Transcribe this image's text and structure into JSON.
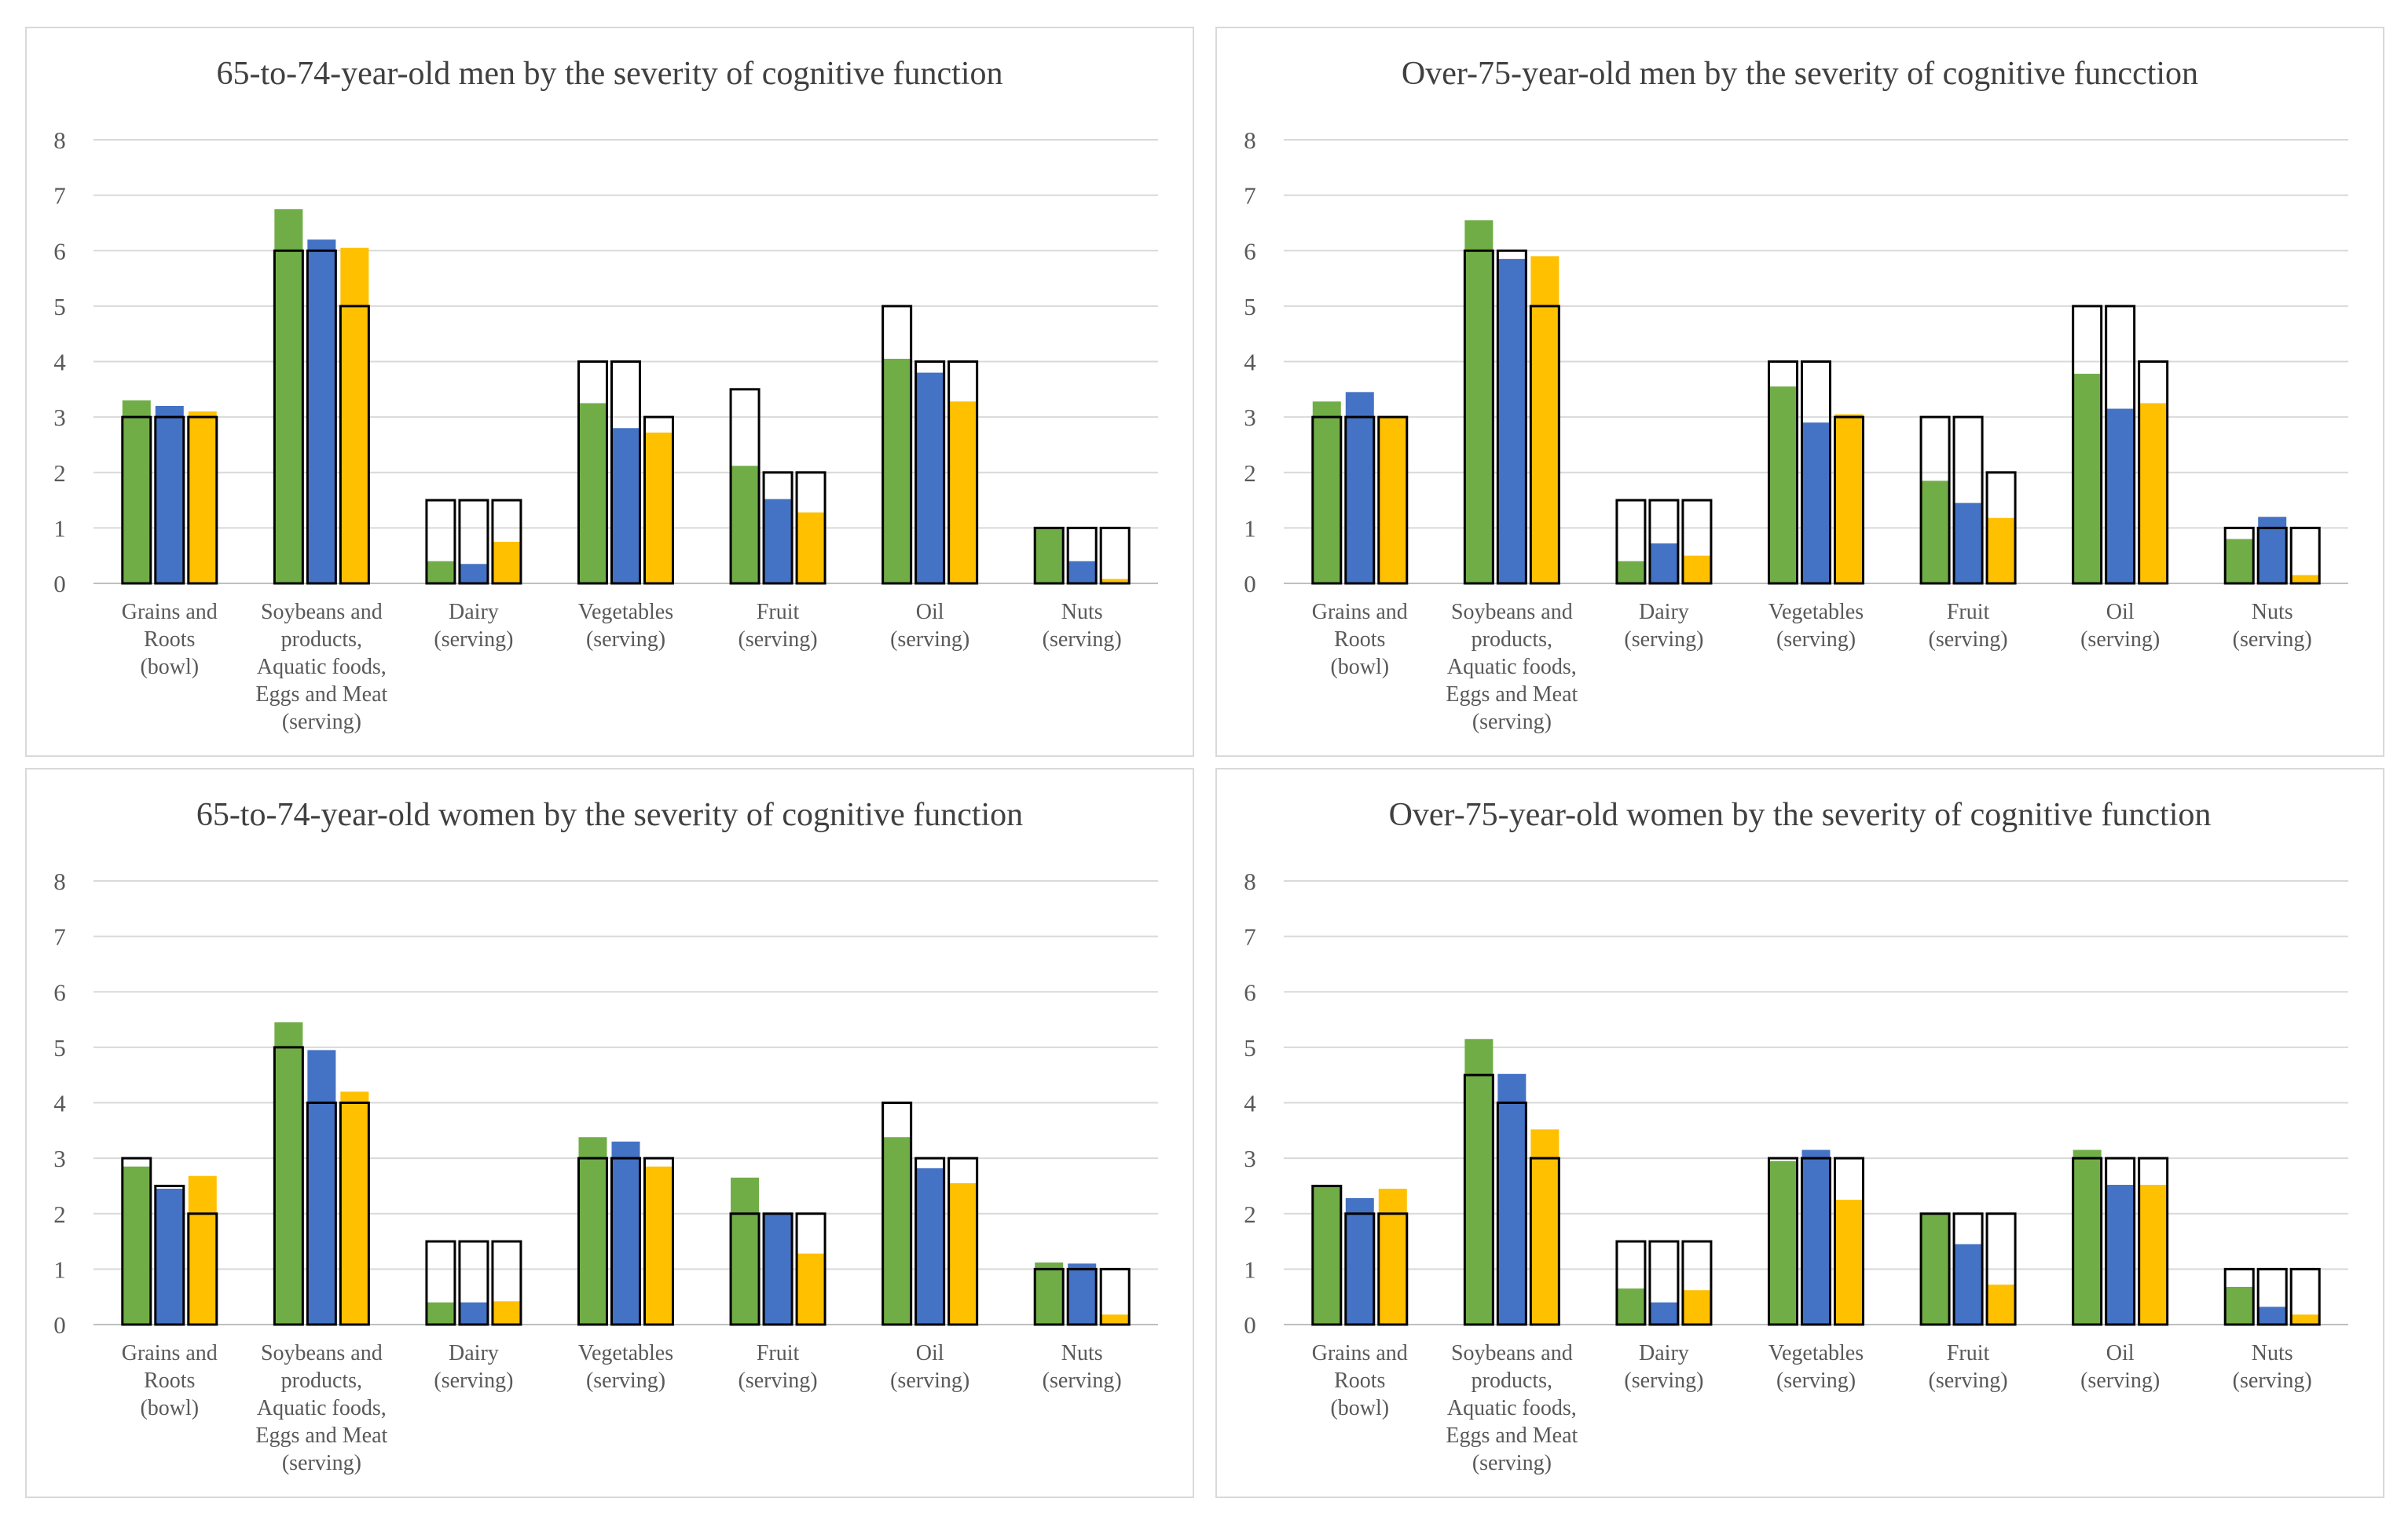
{
  "chart_data": [
    {
      "type": "bar",
      "title": "65-to-74-year-old men by the severity of cognitive function",
      "ylim": [
        0,
        8
      ],
      "yticks": [
        "0",
        "1",
        "2",
        "3",
        "4",
        "5",
        "6",
        "7",
        "8"
      ],
      "categories": [
        [
          "Grains and",
          "Roots",
          "(bowl)"
        ],
        [
          "Soybeans and",
          "products,",
          "Aquatic foods,",
          "Eggs and Meat",
          "(serving)"
        ],
        [
          "Dairy",
          "(serving)"
        ],
        [
          "Vegetables",
          "(serving)"
        ],
        [
          "Fruit",
          "(serving)"
        ],
        [
          "Oil",
          "(serving)"
        ],
        [
          "Nuts",
          "(serving)"
        ]
      ],
      "series": [
        {
          "name": "green",
          "color": "#70ad47",
          "values": [
            3.3,
            6.75,
            0.4,
            3.25,
            2.12,
            4.05,
            1.0
          ],
          "reference": [
            3,
            6,
            1.5,
            4,
            3.5,
            5,
            1
          ]
        },
        {
          "name": "blue",
          "color": "#4472c4",
          "values": [
            3.2,
            6.2,
            0.35,
            2.8,
            1.52,
            3.8,
            0.4
          ],
          "reference": [
            3,
            6,
            1.5,
            4,
            2,
            4,
            1
          ]
        },
        {
          "name": "orange",
          "color": "#ffc000",
          "values": [
            3.1,
            6.05,
            0.75,
            2.72,
            1.28,
            3.28,
            0.08
          ],
          "reference": [
            3,
            5,
            1.5,
            3,
            2,
            4,
            1
          ]
        }
      ]
    },
    {
      "type": "bar",
      "title": "Over-75-year-old men by the severity of cognitive funcction",
      "ylim": [
        0,
        8
      ],
      "yticks": [
        "0",
        "1",
        "2",
        "3",
        "4",
        "5",
        "6",
        "7",
        "8"
      ],
      "categories": [
        [
          "Grains and",
          "Roots",
          "(bowl)"
        ],
        [
          "Soybeans and",
          "products,",
          "Aquatic foods,",
          "Eggs and Meat",
          "(serving)"
        ],
        [
          "Dairy",
          "(serving)"
        ],
        [
          "Vegetables",
          "(serving)"
        ],
        [
          "Fruit",
          "(serving)"
        ],
        [
          "Oil",
          "(serving)"
        ],
        [
          "Nuts",
          "(serving)"
        ]
      ],
      "series": [
        {
          "name": "green",
          "color": "#70ad47",
          "values": [
            3.28,
            6.55,
            0.4,
            3.55,
            1.85,
            3.78,
            0.8
          ],
          "reference": [
            3,
            6,
            1.5,
            4,
            3,
            5,
            1
          ]
        },
        {
          "name": "blue",
          "color": "#4472c4",
          "values": [
            3.45,
            5.85,
            0.72,
            2.9,
            1.45,
            3.15,
            1.2
          ],
          "reference": [
            3,
            6,
            1.5,
            4,
            3,
            5,
            1
          ]
        },
        {
          "name": "orange",
          "color": "#ffc000",
          "values": [
            3.0,
            5.9,
            0.5,
            3.05,
            1.18,
            3.25,
            0.15
          ],
          "reference": [
            3,
            5,
            1.5,
            3,
            2,
            4,
            1
          ]
        }
      ]
    },
    {
      "type": "bar",
      "title": "65-to-74-year-old women by the severity of cognitive function",
      "ylim": [
        0,
        8
      ],
      "yticks": [
        "0",
        "1",
        "2",
        "3",
        "4",
        "5",
        "6",
        "7",
        "8"
      ],
      "categories": [
        [
          "Grains and",
          "Roots",
          "(bowl)"
        ],
        [
          "Soybeans and",
          "products,",
          "Aquatic foods,",
          "Eggs and Meat",
          "(serving)"
        ],
        [
          "Dairy",
          "(serving)"
        ],
        [
          "Vegetables",
          "(serving)"
        ],
        [
          "Fruit",
          "(serving)"
        ],
        [
          "Oil",
          "(serving)"
        ],
        [
          "Nuts",
          "(serving)"
        ]
      ],
      "series": [
        {
          "name": "green",
          "color": "#70ad47",
          "values": [
            2.85,
            5.45,
            0.4,
            3.38,
            2.65,
            3.38,
            1.12
          ],
          "reference": [
            3,
            5,
            1.5,
            3,
            2,
            4,
            1
          ]
        },
        {
          "name": "blue",
          "color": "#4472c4",
          "values": [
            2.45,
            4.95,
            0.4,
            3.3,
            2.0,
            2.82,
            1.1
          ],
          "reference": [
            2.5,
            4,
            1.5,
            3,
            2,
            3,
            1
          ]
        },
        {
          "name": "orange",
          "color": "#ffc000",
          "values": [
            2.68,
            4.2,
            0.42,
            2.85,
            1.28,
            2.55,
            0.18
          ],
          "reference": [
            2,
            4,
            1.5,
            3,
            2,
            3,
            1
          ]
        }
      ]
    },
    {
      "type": "bar",
      "title": "Over-75-year-old women by the severity of cognitive function",
      "ylim": [
        0,
        8
      ],
      "yticks": [
        "0",
        "1",
        "2",
        "3",
        "4",
        "5",
        "6",
        "7",
        "8"
      ],
      "categories": [
        [
          "Grains and",
          "Roots",
          "(bowl)"
        ],
        [
          "Soybeans and",
          "products,",
          "Aquatic foods,",
          "Eggs and Meat",
          "(serving)"
        ],
        [
          "Dairy",
          "(serving)"
        ],
        [
          "Vegetables",
          "(serving)"
        ],
        [
          "Fruit",
          "(serving)"
        ],
        [
          "Oil",
          "(serving)"
        ],
        [
          "Nuts",
          "(serving)"
        ]
      ],
      "series": [
        {
          "name": "green",
          "color": "#70ad47",
          "values": [
            2.5,
            5.15,
            0.65,
            2.95,
            2.0,
            3.15,
            0.68
          ],
          "reference": [
            2.5,
            4.5,
            1.5,
            3,
            2,
            3,
            1
          ]
        },
        {
          "name": "blue",
          "color": "#4472c4",
          "values": [
            2.28,
            4.52,
            0.4,
            3.15,
            1.45,
            2.52,
            0.32
          ],
          "reference": [
            2,
            4,
            1.5,
            3,
            2,
            3,
            1
          ]
        },
        {
          "name": "orange",
          "color": "#ffc000",
          "values": [
            2.45,
            3.52,
            0.62,
            2.25,
            0.72,
            2.52,
            0.18
          ],
          "reference": [
            2,
            3,
            1.5,
            3,
            2,
            3,
            1
          ]
        }
      ]
    }
  ]
}
